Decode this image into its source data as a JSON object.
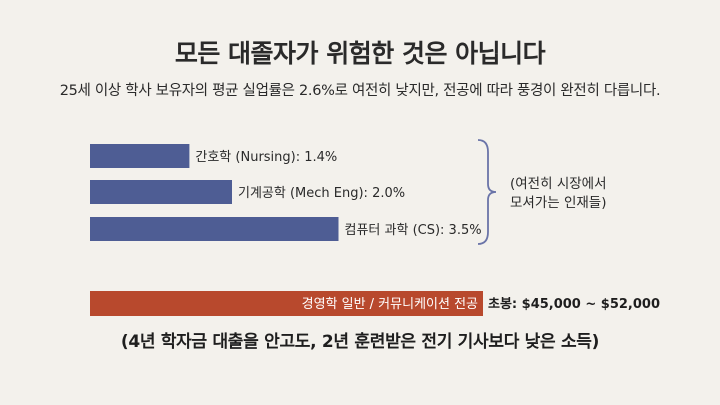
{
  "header": {
    "title": "모든 대졸자가 위험한 것은 아닙니다",
    "subtitle": "25세 이상 학사 보유자의 평균 실업률은 2.6%로 여전히 낮지만, 전공에 따라 풍경이 완전히 다릅니다."
  },
  "chart_data": {
    "type": "bar",
    "orientation": "horizontal",
    "categories": [
      "간호학 (Nursing)",
      "기계공학 (Mech Eng)",
      "컴퓨터 과학 (CS)"
    ],
    "values": [
      1.4,
      2.0,
      3.5
    ],
    "value_unit": "%",
    "bar_labels": [
      "간호학 (Nursing): 1.4%",
      "기계공학 (Mech Eng): 2.0%",
      "컴퓨터 과학 (CS): 3.5%"
    ],
    "bar_color": "#4e5d94",
    "bracket_annotation": "(여전히 시장에서\n모셔가는 인재들)",
    "highlight_bar": {
      "label": "경영학 일반 / 커뮤니케이션 전공",
      "value_text": "초봉: $45,000 ~ $52,000",
      "color": "#b8492d"
    },
    "grid": false
  },
  "footer": {
    "note": "(4년 학자금 대출을 안고도, 2년 훈련받은 전기 기사보다 낮은 소득)"
  }
}
